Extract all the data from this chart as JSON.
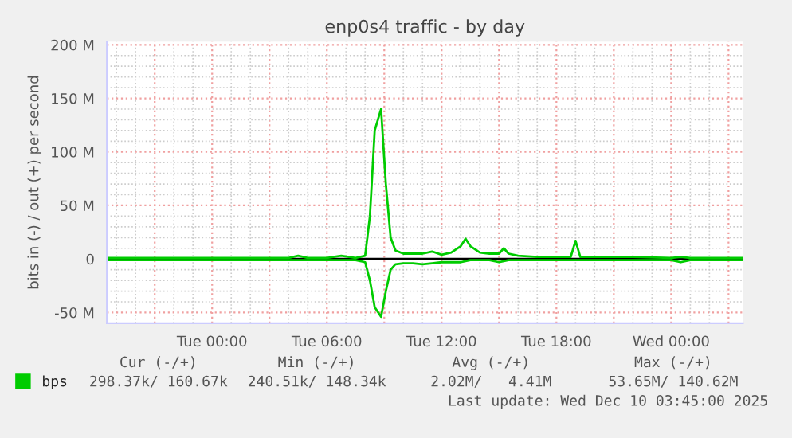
{
  "chart_data": {
    "type": "line",
    "title": "enp0s4 traffic - by day",
    "ylabel": "bits in (-) / out (+) per second",
    "x": [
      "2025-12-08T18:30",
      "2025-12-08T20:00",
      "2025-12-08T22:00",
      "2025-12-09T00:00",
      "2025-12-09T02:00",
      "2025-12-09T04:00",
      "2025-12-09T04:30",
      "2025-12-09T05:00",
      "2025-12-09T06:00",
      "2025-12-09T06:45",
      "2025-12-09T07:30",
      "2025-12-09T08:00",
      "2025-12-09T08:15",
      "2025-12-09T08:30",
      "2025-12-09T08:50",
      "2025-12-09T09:05",
      "2025-12-09T09:20",
      "2025-12-09T09:35",
      "2025-12-09T10:00",
      "2025-12-09T10:30",
      "2025-12-09T11:00",
      "2025-12-09T11:30",
      "2025-12-09T12:00",
      "2025-12-09T12:30",
      "2025-12-09T13:00",
      "2025-12-09T13:15",
      "2025-12-09T13:30",
      "2025-12-09T14:00",
      "2025-12-09T14:30",
      "2025-12-09T15:00",
      "2025-12-09T15:15",
      "2025-12-09T15:30",
      "2025-12-09T16:00",
      "2025-12-09T17:00",
      "2025-12-09T18:00",
      "2025-12-09T18:45",
      "2025-12-09T19:00",
      "2025-12-09T19:15",
      "2025-12-09T20:00",
      "2025-12-09T22:00",
      "2025-12-10T00:00",
      "2025-12-10T00:30",
      "2025-12-10T01:00",
      "2025-12-10T02:00",
      "2025-12-10T03:45"
    ],
    "series": [
      {
        "name": "bps",
        "color": "#00cc00",
        "values": [
          1,
          1,
          1,
          1,
          1,
          1,
          3,
          1,
          1,
          3,
          1,
          3,
          40,
          120,
          140,
          70,
          20,
          8,
          5,
          5,
          5,
          7,
          4,
          6,
          12,
          19,
          12,
          6,
          5,
          5,
          10,
          5,
          3,
          2,
          2,
          2,
          17,
          2,
          2,
          2,
          1,
          2,
          1,
          1,
          1
        ]
      },
      {
        "color": "#00cc00",
        "values": [
          -1,
          -1,
          -1,
          -1,
          -1,
          -1,
          -1,
          -1,
          -1,
          -1,
          -1,
          -3,
          -20,
          -45,
          -54,
          -30,
          -10,
          -5,
          -4,
          -4,
          -5,
          -4,
          -3,
          -3,
          -3,
          -2,
          -1,
          -1,
          -1,
          -3,
          -2,
          -1,
          -1,
          -1,
          -1,
          -1,
          -1,
          -1,
          -1,
          -1,
          -1,
          -3,
          -1,
          -1,
          -1
        ]
      }
    ],
    "xlim": [
      "2025-12-08T18:30",
      "2025-12-10T03:45"
    ],
    "xticks": [
      {
        "value": "2025-12-08T21:00",
        "label": null
      },
      {
        "value": "2025-12-09T00:00",
        "label": "Tue 00:00"
      },
      {
        "value": "2025-12-09T03:00",
        "label": null
      },
      {
        "value": "2025-12-09T06:00",
        "label": "Tue 06:00"
      },
      {
        "value": "2025-12-09T09:00",
        "label": null
      },
      {
        "value": "2025-12-09T12:00",
        "label": "Tue 12:00"
      },
      {
        "value": "2025-12-09T15:00",
        "label": null
      },
      {
        "value": "2025-12-09T18:00",
        "label": "Tue 18:00"
      },
      {
        "value": "2025-12-09T21:00",
        "label": null
      },
      {
        "value": "2025-12-10T00:00",
        "label": "Wed 00:00"
      },
      {
        "value": "2025-12-10T03:00",
        "label": null
      }
    ],
    "ylim": [
      -58,
      203
    ],
    "yticks": [
      {
        "value": -50,
        "label": "-50 M"
      },
      {
        "value": 0,
        "label": "0"
      },
      {
        "value": 50,
        "label": "50 M"
      },
      {
        "value": 100,
        "label": "100 M"
      },
      {
        "value": 150,
        "label": "150 M"
      },
      {
        "value": 200,
        "label": "200 M"
      }
    ],
    "ref_lines": [
      {
        "axis": "y",
        "value": 0,
        "color": "#000000"
      }
    ],
    "grid": true,
    "legend": "bottom",
    "line_style": "solid",
    "marker": "none",
    "annotations": [
      "Cur (-/+)",
      "Min (-/+)",
      "Avg (-/+)",
      "Max (-/+)",
      "298.37k/ 160.67k",
      "240.51k/ 148.34k",
      "2.02M/   4.41M",
      "53.65M/ 140.62M",
      "Last update: Wed Dec 10 03:45:00 2025"
    ]
  }
}
